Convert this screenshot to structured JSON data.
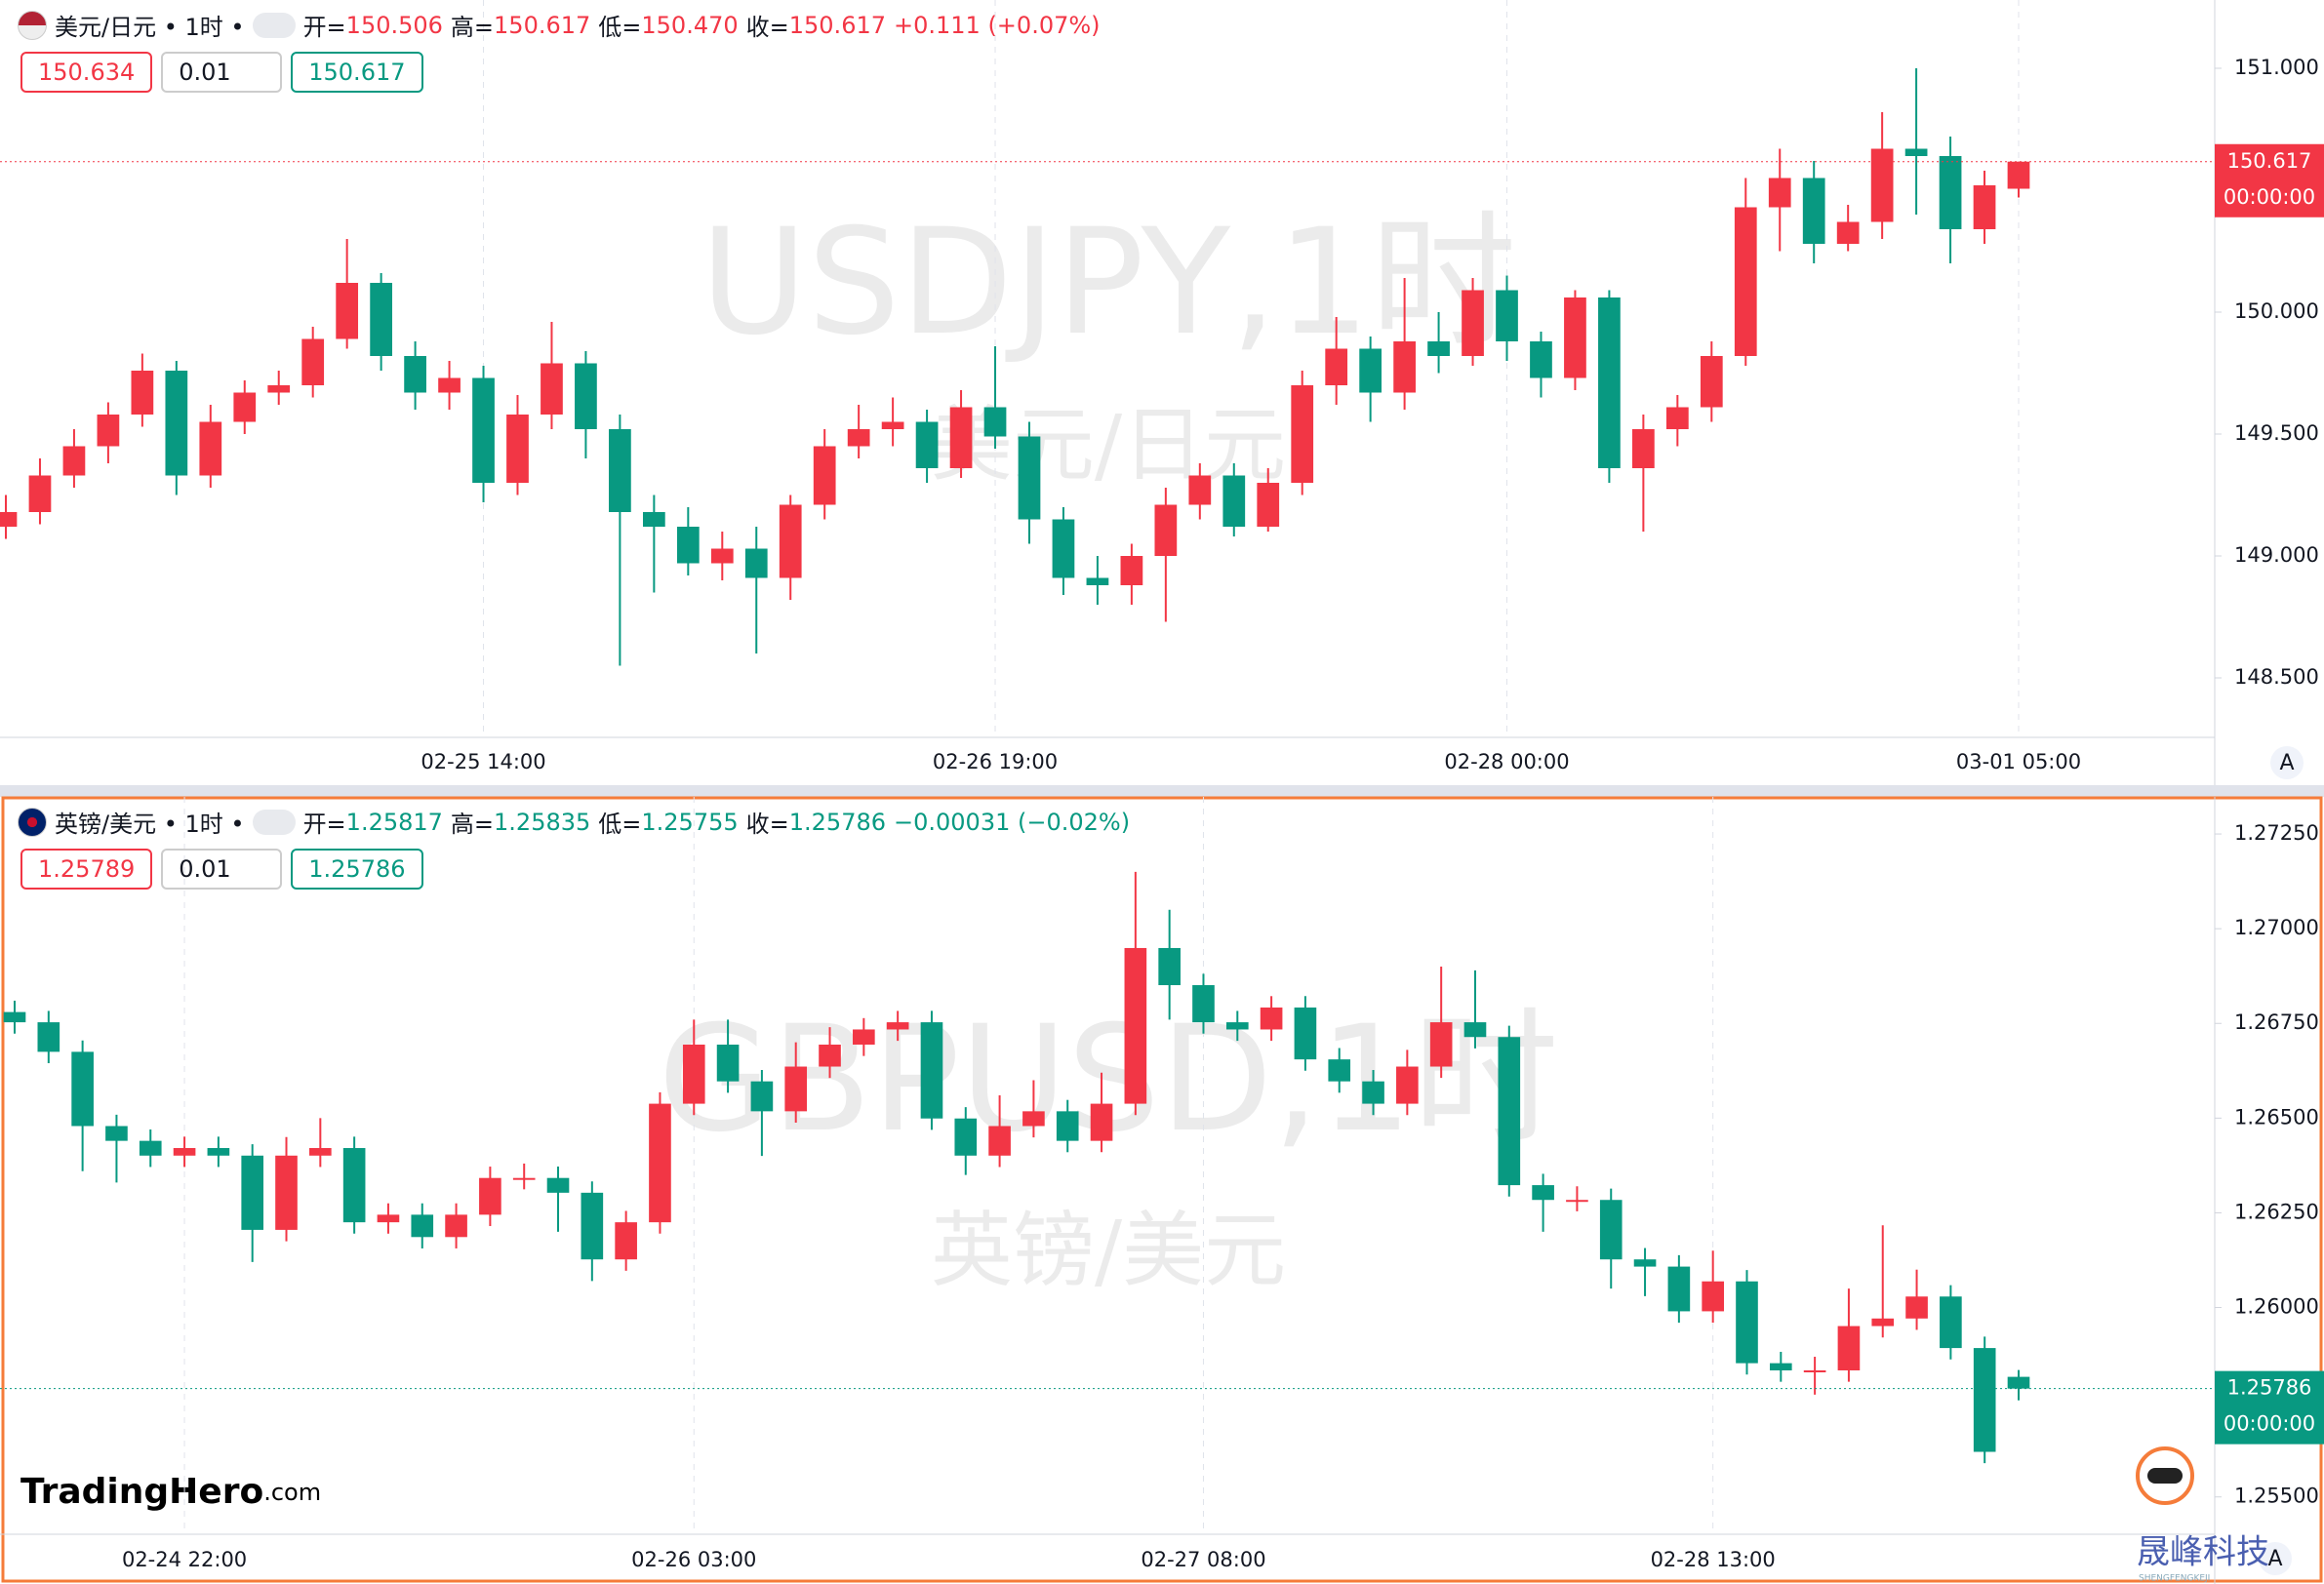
{
  "chart_data": [
    {
      "type": "candlestick",
      "symbol": "美元/日元 • 1时 •",
      "header_color": "#f23645",
      "ohlc_header": [
        {
          "label": "开=",
          "value": "150.506"
        },
        {
          "label": "高=",
          "value": "150.617"
        },
        {
          "label": "低=",
          "value": "150.470"
        },
        {
          "label": "收=",
          "value": "150.617"
        }
      ],
      "change": "+0.111 (+0.07%)",
      "buttons": [
        "150.634",
        "0.01",
        "150.617"
      ],
      "watermark": "USDJPY,1时",
      "watermark_sub": "美元/日元",
      "price_tag": "150.617",
      "countdown": "00:00:00",
      "up_color": "#f23645",
      "down_color": "#089981",
      "ylim": [
        148.26,
        151.28
      ],
      "yticks": [
        {
          "value": 148.5,
          "label": "148.500"
        },
        {
          "value": 149,
          "label": "149.000"
        },
        {
          "value": 149.5,
          "label": "149.500"
        },
        {
          "value": 150,
          "label": "150.000"
        },
        {
          "value": 151,
          "label": "151.000"
        }
      ],
      "categories": [
        null,
        null,
        null,
        null,
        null,
        null,
        null,
        null,
        null,
        null,
        null,
        null,
        null,
        null,
        "02-25 14:00",
        null,
        null,
        null,
        null,
        null,
        null,
        null,
        null,
        null,
        null,
        null,
        null,
        null,
        null,
        "02-26 19:00",
        null,
        null,
        null,
        null,
        null,
        null,
        null,
        null,
        null,
        null,
        null,
        null,
        null,
        null,
        "02-28 00:00",
        null,
        null,
        null,
        null,
        null,
        null,
        null,
        null,
        null,
        null,
        null,
        null,
        null,
        null,
        "03-01 05:00"
      ],
      "open": [
        149.12,
        149.18,
        149.33,
        149.45,
        149.58,
        149.76,
        149.33,
        149.55,
        149.67,
        149.7,
        149.89,
        150.12,
        149.82,
        149.67,
        149.73,
        149.3,
        149.58,
        149.79,
        149.52,
        149.18,
        149.12,
        148.97,
        149.03,
        148.91,
        149.21,
        149.45,
        149.52,
        149.55,
        149.36,
        149.61,
        149.49,
        149.15,
        148.91,
        148.88,
        149.0,
        149.21,
        149.33,
        149.12,
        149.3,
        149.7,
        149.85,
        149.67,
        149.88,
        149.82,
        150.09,
        149.88,
        149.73,
        150.06,
        149.36,
        149.52,
        149.61,
        149.82,
        150.43,
        150.55,
        150.28,
        150.37,
        150.67,
        150.64,
        150.34,
        150.506
      ],
      "high": [
        149.25,
        149.4,
        149.52,
        149.63,
        149.83,
        149.8,
        149.62,
        149.72,
        149.76,
        149.94,
        150.3,
        150.16,
        149.88,
        149.8,
        149.78,
        149.66,
        149.96,
        149.84,
        149.58,
        149.25,
        149.2,
        149.1,
        149.12,
        149.25,
        149.52,
        149.62,
        149.65,
        149.6,
        149.68,
        149.86,
        149.55,
        149.2,
        149.0,
        149.05,
        149.28,
        149.38,
        149.38,
        149.36,
        149.76,
        149.98,
        149.9,
        150.14,
        150.0,
        150.14,
        150.15,
        149.92,
        150.09,
        150.09,
        149.58,
        149.66,
        149.88,
        150.55,
        150.67,
        150.62,
        150.44,
        150.82,
        151.0,
        150.72,
        150.58,
        150.617
      ],
      "low": [
        149.07,
        149.13,
        149.28,
        149.38,
        149.53,
        149.25,
        149.28,
        149.5,
        149.62,
        149.65,
        149.85,
        149.76,
        149.6,
        149.6,
        149.22,
        149.25,
        149.52,
        149.4,
        148.55,
        148.85,
        148.92,
        148.9,
        148.6,
        148.82,
        149.15,
        149.4,
        149.45,
        149.3,
        149.32,
        149.44,
        149.05,
        148.84,
        148.8,
        148.8,
        148.73,
        149.15,
        149.08,
        149.1,
        149.25,
        149.62,
        149.55,
        149.6,
        149.75,
        149.78,
        149.8,
        149.65,
        149.68,
        149.3,
        149.1,
        149.45,
        149.55,
        149.78,
        150.25,
        150.2,
        150.25,
        150.3,
        150.4,
        150.2,
        150.28,
        150.47
      ],
      "close": [
        149.18,
        149.33,
        149.45,
        149.58,
        149.76,
        149.33,
        149.55,
        149.67,
        149.7,
        149.89,
        150.12,
        149.82,
        149.67,
        149.73,
        149.3,
        149.58,
        149.79,
        149.52,
        149.18,
        149.12,
        148.97,
        149.03,
        148.91,
        149.21,
        149.45,
        149.52,
        149.55,
        149.36,
        149.61,
        149.49,
        149.15,
        148.91,
        148.88,
        149.0,
        149.21,
        149.33,
        149.12,
        149.3,
        149.7,
        149.85,
        149.67,
        149.88,
        149.82,
        150.09,
        149.88,
        149.73,
        150.06,
        149.36,
        149.52,
        149.61,
        149.82,
        150.43,
        150.55,
        150.28,
        150.37,
        150.67,
        150.64,
        150.34,
        150.52,
        150.617
      ]
    },
    {
      "type": "candlestick",
      "symbol": "英镑/美元 • 1时 •",
      "header_color": "#089981",
      "ohlc_header": [
        {
          "label": "开=",
          "value": "1.25817"
        },
        {
          "label": "高=",
          "value": "1.25835"
        },
        {
          "label": "低=",
          "value": "1.25755"
        },
        {
          "label": "收=",
          "value": "1.25786"
        }
      ],
      "change": "−0.00031 (−0.02%)",
      "buttons": [
        "1.25789",
        "0.01",
        "1.25786"
      ],
      "watermark": "GBPUSD,1时",
      "watermark_sub": "英镑/美元",
      "price_tag": "1.25786",
      "countdown": "00:00:00",
      "up_color": "#f23645",
      "down_color": "#089981",
      "ylim": [
        1.25404,
        1.27348
      ],
      "yticks": [
        {
          "value": 1.255,
          "label": "1.25500"
        },
        {
          "value": 1.2575,
          "label": "1.25750"
        },
        {
          "value": 1.26,
          "label": "1.26000"
        },
        {
          "value": 1.2625,
          "label": "1.26250"
        },
        {
          "value": 1.265,
          "label": "1.26500"
        },
        {
          "value": 1.2675,
          "label": "1.26750"
        },
        {
          "value": 1.27,
          "label": "1.27000"
        },
        {
          "value": 1.2725,
          "label": "1.27250"
        }
      ],
      "categories": [
        null,
        null,
        null,
        null,
        null,
        "02-24 22:00",
        null,
        null,
        null,
        null,
        null,
        null,
        null,
        null,
        null,
        null,
        null,
        null,
        null,
        null,
        "02-26 03:00",
        null,
        null,
        null,
        null,
        null,
        null,
        null,
        null,
        null,
        null,
        null,
        null,
        null,
        null,
        "02-27 08:00",
        null,
        null,
        null,
        null,
        null,
        null,
        null,
        null,
        null,
        null,
        null,
        null,
        null,
        null,
        "02-28 13:00",
        null,
        null,
        null,
        null,
        null,
        null,
        null,
        null,
        null
      ],
      "open": [
        1.2678,
        1.26753,
        1.26675,
        1.26479,
        1.2644,
        1.26401,
        1.26421,
        1.26401,
        1.26205,
        1.26401,
        1.26421,
        1.26225,
        1.26245,
        1.26186,
        1.26245,
        1.26342,
        1.26342,
        1.26303,
        1.26127,
        1.26225,
        1.26538,
        1.26694,
        1.26597,
        1.26518,
        1.26636,
        1.26694,
        1.26734,
        1.26753,
        1.26499,
        1.26401,
        1.26479,
        1.26518,
        1.2644,
        1.26538,
        1.26949,
        1.26851,
        1.26753,
        1.26734,
        1.26792,
        1.26655,
        1.26597,
        1.26538,
        1.26636,
        1.26753,
        1.26714,
        1.26323,
        1.26284,
        1.26284,
        1.26127,
        1.26108,
        1.2599,
        1.26069,
        1.25853,
        1.25834,
        1.25834,
        1.25951,
        1.25971,
        1.26029,
        1.25893,
        1.25817
      ],
      "high": [
        1.2681,
        1.26783,
        1.26705,
        1.26509,
        1.2647,
        1.26451,
        1.26451,
        1.26431,
        1.2645,
        1.265,
        1.26451,
        1.26275,
        1.26275,
        1.26275,
        1.26372,
        1.2638,
        1.26372,
        1.26333,
        1.26255,
        1.26568,
        1.2676,
        1.2676,
        1.26627,
        1.267,
        1.2674,
        1.26764,
        1.26783,
        1.26783,
        1.26529,
        1.2656,
        1.266,
        1.26548,
        1.2662,
        1.2715,
        1.2705,
        1.26881,
        1.26783,
        1.26822,
        1.26822,
        1.26685,
        1.26627,
        1.2668,
        1.269,
        1.2689,
        1.26744,
        1.26353,
        1.2632,
        1.26314,
        1.26157,
        1.26138,
        1.2615,
        1.26099,
        1.25883,
        1.2587,
        1.2605,
        1.26217,
        1.261,
        1.26059,
        1.25923,
        1.25835
      ],
      "low": [
        1.26723,
        1.26645,
        1.2636,
        1.2633,
        1.26371,
        1.26371,
        1.26371,
        1.2612,
        1.26175,
        1.26371,
        1.26195,
        1.26195,
        1.26156,
        1.26156,
        1.26215,
        1.26312,
        1.262,
        1.2607,
        1.26097,
        1.26195,
        1.26508,
        1.26567,
        1.264,
        1.26488,
        1.26606,
        1.26664,
        1.26704,
        1.26469,
        1.2635,
        1.26371,
        1.26449,
        1.2641,
        1.2641,
        1.26508,
        1.2676,
        1.26723,
        1.26704,
        1.26704,
        1.26625,
        1.26567,
        1.26508,
        1.26508,
        1.26606,
        1.26684,
        1.26293,
        1.262,
        1.26254,
        1.2605,
        1.2603,
        1.2596,
        1.2596,
        1.25823,
        1.25804,
        1.2577,
        1.25804,
        1.25921,
        1.25941,
        1.25863,
        1.25589,
        1.25755
      ],
      "close": [
        1.26753,
        1.26675,
        1.26479,
        1.2644,
        1.26401,
        1.26421,
        1.26401,
        1.26205,
        1.26401,
        1.26421,
        1.26225,
        1.26245,
        1.26186,
        1.26245,
        1.26342,
        1.26342,
        1.26303,
        1.26127,
        1.26225,
        1.26538,
        1.26694,
        1.26597,
        1.26518,
        1.26636,
        1.26694,
        1.26734,
        1.26753,
        1.26499,
        1.26401,
        1.26479,
        1.26518,
        1.2644,
        1.26538,
        1.26949,
        1.26851,
        1.26753,
        1.26734,
        1.26792,
        1.26655,
        1.26597,
        1.26538,
        1.26636,
        1.26753,
        1.26714,
        1.26323,
        1.26284,
        1.26284,
        1.26127,
        1.26108,
        1.2599,
        1.26069,
        1.25853,
        1.25834,
        1.25834,
        1.25951,
        1.25971,
        1.26029,
        1.25893,
        1.25619,
        1.25786
      ]
    }
  ],
  "branding": {
    "logo": "TradingHero",
    "logo_suffix": ".com",
    "auto_button": "A",
    "corner": "晟峰科技",
    "corner_sub": "SHENGFENGKEJI"
  }
}
